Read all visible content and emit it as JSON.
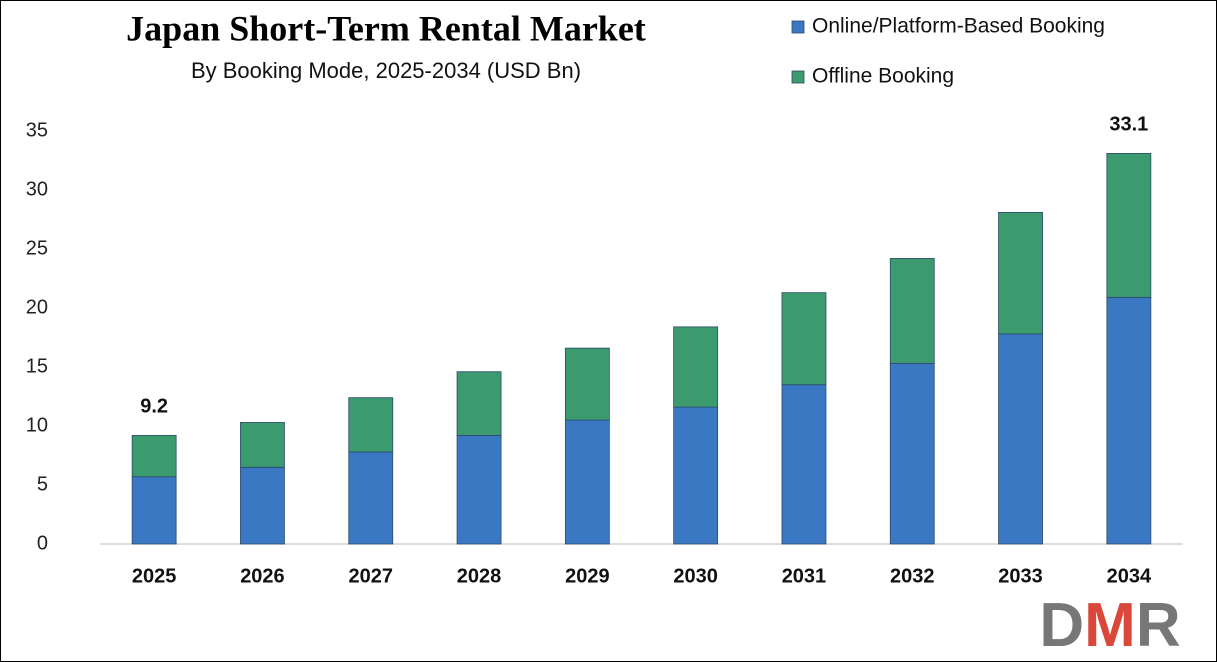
{
  "chart_data": {
    "type": "stacked-bar",
    "title": "Japan Short-Term Rental Market",
    "subtitle": "By Booking Mode, 2025-2034 (USD Bn)",
    "categories": [
      "2025",
      "2026",
      "2027",
      "2028",
      "2029",
      "2030",
      "2031",
      "2032",
      "2033",
      "2034"
    ],
    "series": [
      {
        "name": "Online/Platform-Based Booking",
        "color": "#3a78c4",
        "values": [
          5.7,
          6.5,
          7.8,
          9.2,
          10.5,
          11.6,
          13.5,
          15.3,
          17.8,
          20.9
        ]
      },
      {
        "name": "Offline Booking",
        "color": "#3c9a6f",
        "values": [
          3.5,
          3.8,
          4.6,
          5.4,
          6.1,
          6.8,
          7.8,
          8.9,
          10.3,
          12.2
        ]
      }
    ],
    "annotations": [
      {
        "category": "2025",
        "value": 9.2
      },
      {
        "category": "2034",
        "value": 33.1
      }
    ],
    "ylim": [
      0,
      35
    ],
    "yticks": [
      0,
      5,
      10,
      15,
      20,
      25,
      30,
      35
    ],
    "grid": false,
    "legend": "top-right",
    "logo": [
      "D",
      "M",
      "R"
    ]
  }
}
